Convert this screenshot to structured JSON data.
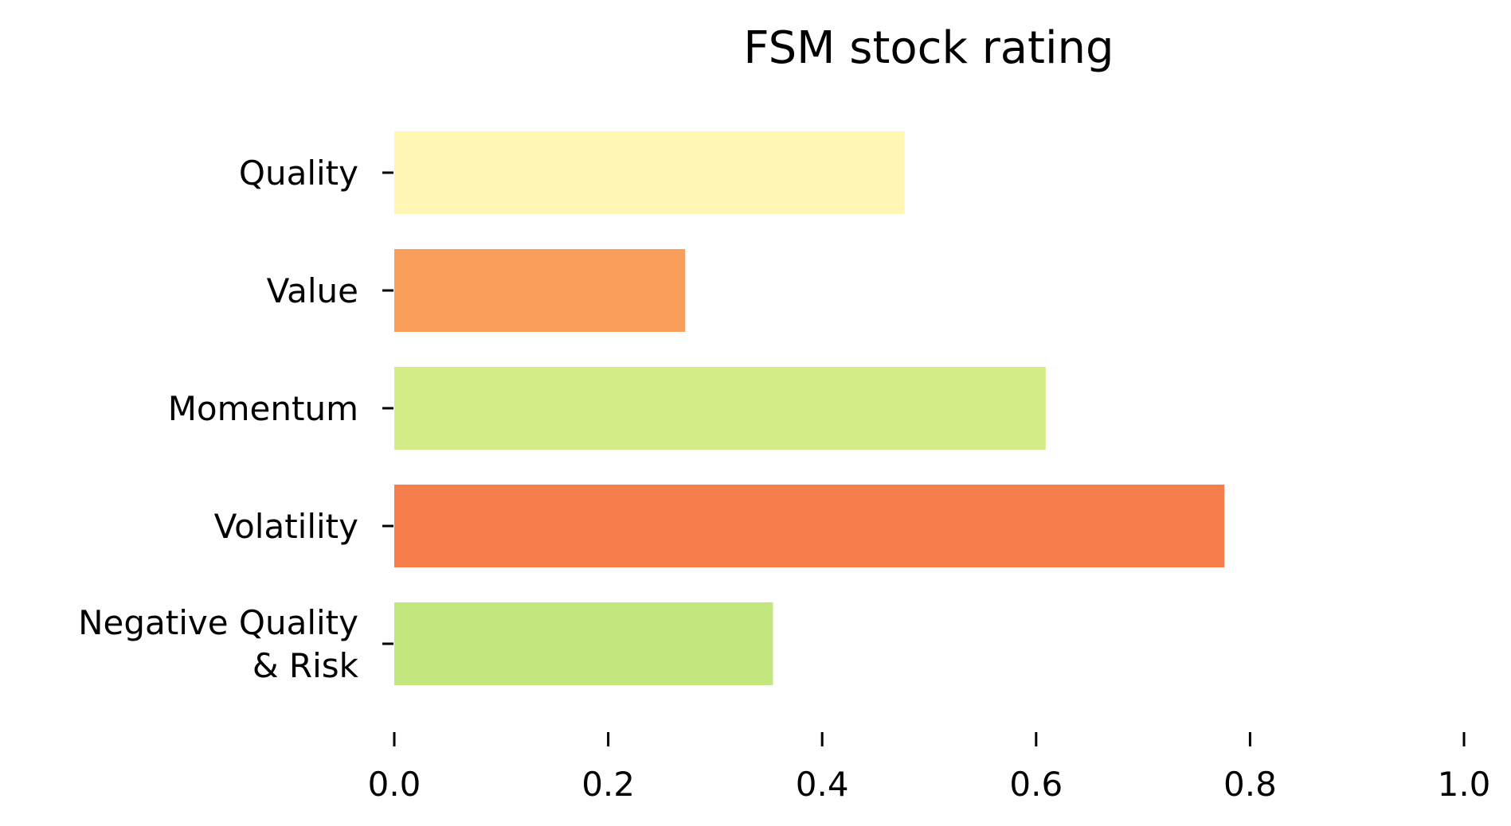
{
  "chart_data": {
    "type": "bar",
    "orientation": "horizontal",
    "title": "FSM stock rating",
    "xlabel": "",
    "ylabel": "",
    "xlim": [
      0,
      1
    ],
    "x_ticks": [
      "0.0",
      "0.2",
      "0.4",
      "0.6",
      "0.8",
      "1.0"
    ],
    "x_tick_values": [
      0,
      0.2,
      0.4,
      0.6,
      0.8,
      1.0
    ],
    "grid": false,
    "categories": [
      [
        "Quality"
      ],
      [
        "Value"
      ],
      [
        "Momentum"
      ],
      [
        "Volatility"
      ],
      [
        "Negative Quality",
        "& Risk"
      ]
    ],
    "values": [
      0.477,
      0.272,
      0.609,
      0.776,
      0.354
    ],
    "colors": [
      "#fff7b3",
      "#f99d5b",
      "#d5ed89",
      "#f57e4c",
      "#c3e67e"
    ]
  }
}
